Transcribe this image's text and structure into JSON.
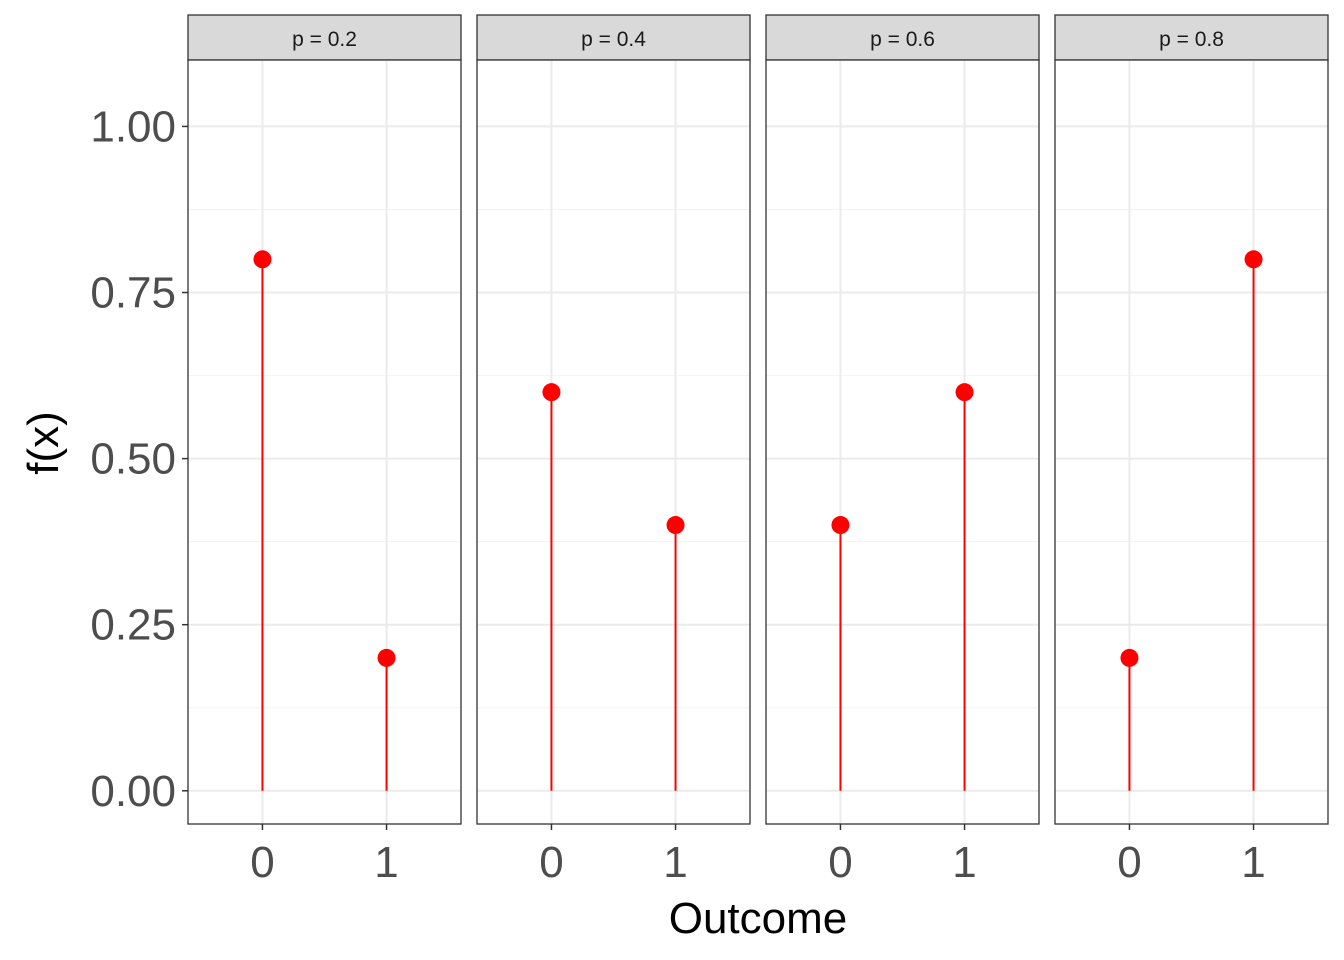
{
  "chart_data": {
    "type": "lollipop",
    "facet_var_label": "p",
    "xlabel": "Outcome",
    "ylabel": "f(x)",
    "x_ticks": [
      "0",
      "1"
    ],
    "xlim": [
      -0.6,
      1.6
    ],
    "ylim": [
      -0.05,
      1.1
    ],
    "y_ticks": [
      0,
      0.25,
      0.5,
      0.75,
      1.0
    ],
    "y_tick_labels": [
      "0.00",
      "0.25",
      "0.50",
      "0.75",
      "1.00"
    ],
    "grid": true,
    "point_color": "#ff0000",
    "stem_color": "#ff0000",
    "panels": [
      {
        "strip_label": "p = 0.2",
        "x": [
          0,
          1
        ],
        "y": [
          0.8,
          0.2
        ]
      },
      {
        "strip_label": "p = 0.4",
        "x": [
          0,
          1
        ],
        "y": [
          0.6,
          0.4
        ]
      },
      {
        "strip_label": "p = 0.6",
        "x": [
          0,
          1
        ],
        "y": [
          0.4,
          0.6
        ]
      },
      {
        "strip_label": "p = 0.8",
        "x": [
          0,
          1
        ],
        "y": [
          0.2,
          0.8
        ]
      }
    ]
  }
}
